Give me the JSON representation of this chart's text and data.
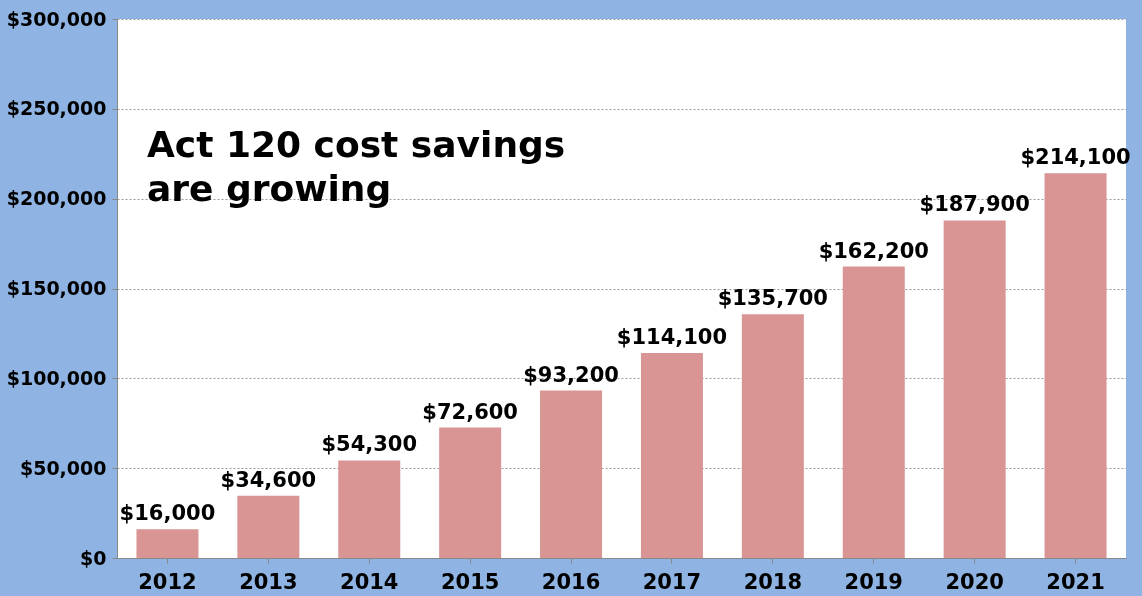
{
  "chart_data": {
    "type": "bar",
    "categories": [
      "2012",
      "2013",
      "2014",
      "2015",
      "2016",
      "2017",
      "2018",
      "2019",
      "2020",
      "2021"
    ],
    "values": [
      16000,
      34600,
      54300,
      72600,
      93200,
      114100,
      135700,
      162200,
      187900,
      214100
    ],
    "color": "#d99594",
    "ylim": [
      0,
      300000
    ],
    "yticks": [
      {
        "value": 0,
        "label": "$0"
      },
      {
        "value": 50000,
        "label": "$50,000"
      },
      {
        "value": 100000,
        "label": "$100,000"
      },
      {
        "value": 150000,
        "label": "$150,000"
      },
      {
        "value": 200000,
        "label": "$200,000"
      },
      {
        "value": 250000,
        "label": "$250,000"
      },
      {
        "value": 300000,
        "label": "$300,000"
      }
    ],
    "value_labels": [
      "$16,000",
      "$34,600",
      "$54,300",
      "$72,600",
      "$93,200",
      "$114,100",
      "$135,700",
      "$162,200",
      "$187,900",
      "$214,100"
    ],
    "annotations": [
      "Act 120 cost savings\nare growing"
    ],
    "grid": "y"
  }
}
